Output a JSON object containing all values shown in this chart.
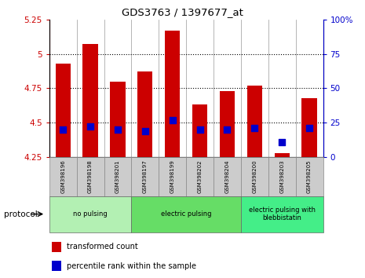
{
  "title": "GDS3763 / 1397677_at",
  "samples": [
    "GSM398196",
    "GSM398198",
    "GSM398201",
    "GSM398197",
    "GSM398199",
    "GSM398202",
    "GSM398204",
    "GSM398200",
    "GSM398203",
    "GSM398205"
  ],
  "transformed_count": [
    4.93,
    5.07,
    4.8,
    4.87,
    5.17,
    4.63,
    4.73,
    4.77,
    4.28,
    4.68
  ],
  "percentile_rank": [
    20,
    22,
    20,
    19,
    27,
    20,
    20,
    21,
    11,
    21
  ],
  "bar_bottom": 4.25,
  "ylim_left": [
    4.25,
    5.25
  ],
  "ylim_right": [
    0,
    100
  ],
  "yticks_left": [
    4.25,
    4.5,
    4.75,
    5.0,
    5.25
  ],
  "yticks_right": [
    0,
    25,
    50,
    75,
    100
  ],
  "ytick_labels_left": [
    "4.25",
    "4.5",
    "4.75",
    "5",
    "5.25"
  ],
  "ytick_labels_right": [
    "0",
    "25",
    "50",
    "75",
    "100%"
  ],
  "hlines": [
    4.5,
    4.75,
    5.0
  ],
  "bar_color": "#cc0000",
  "dot_color": "#0000cc",
  "groups": [
    {
      "label": "no pulsing",
      "start": 0,
      "end": 3,
      "color": "#b3f0b3"
    },
    {
      "label": "electric pulsing",
      "start": 3,
      "end": 7,
      "color": "#66dd66"
    },
    {
      "label": "electric pulsing with\nblebbistatin",
      "start": 7,
      "end": 10,
      "color": "#44ee88"
    }
  ],
  "protocol_label": "protocol",
  "legend_red_label": "transformed count",
  "legend_blue_label": "percentile rank within the sample",
  "left_axis_color": "#cc0000",
  "right_axis_color": "#0000cc",
  "sample_box_color": "#cccccc",
  "dot_size": 40,
  "bar_width": 0.55,
  "fig_width": 4.65,
  "fig_height": 3.54,
  "fig_dpi": 100
}
